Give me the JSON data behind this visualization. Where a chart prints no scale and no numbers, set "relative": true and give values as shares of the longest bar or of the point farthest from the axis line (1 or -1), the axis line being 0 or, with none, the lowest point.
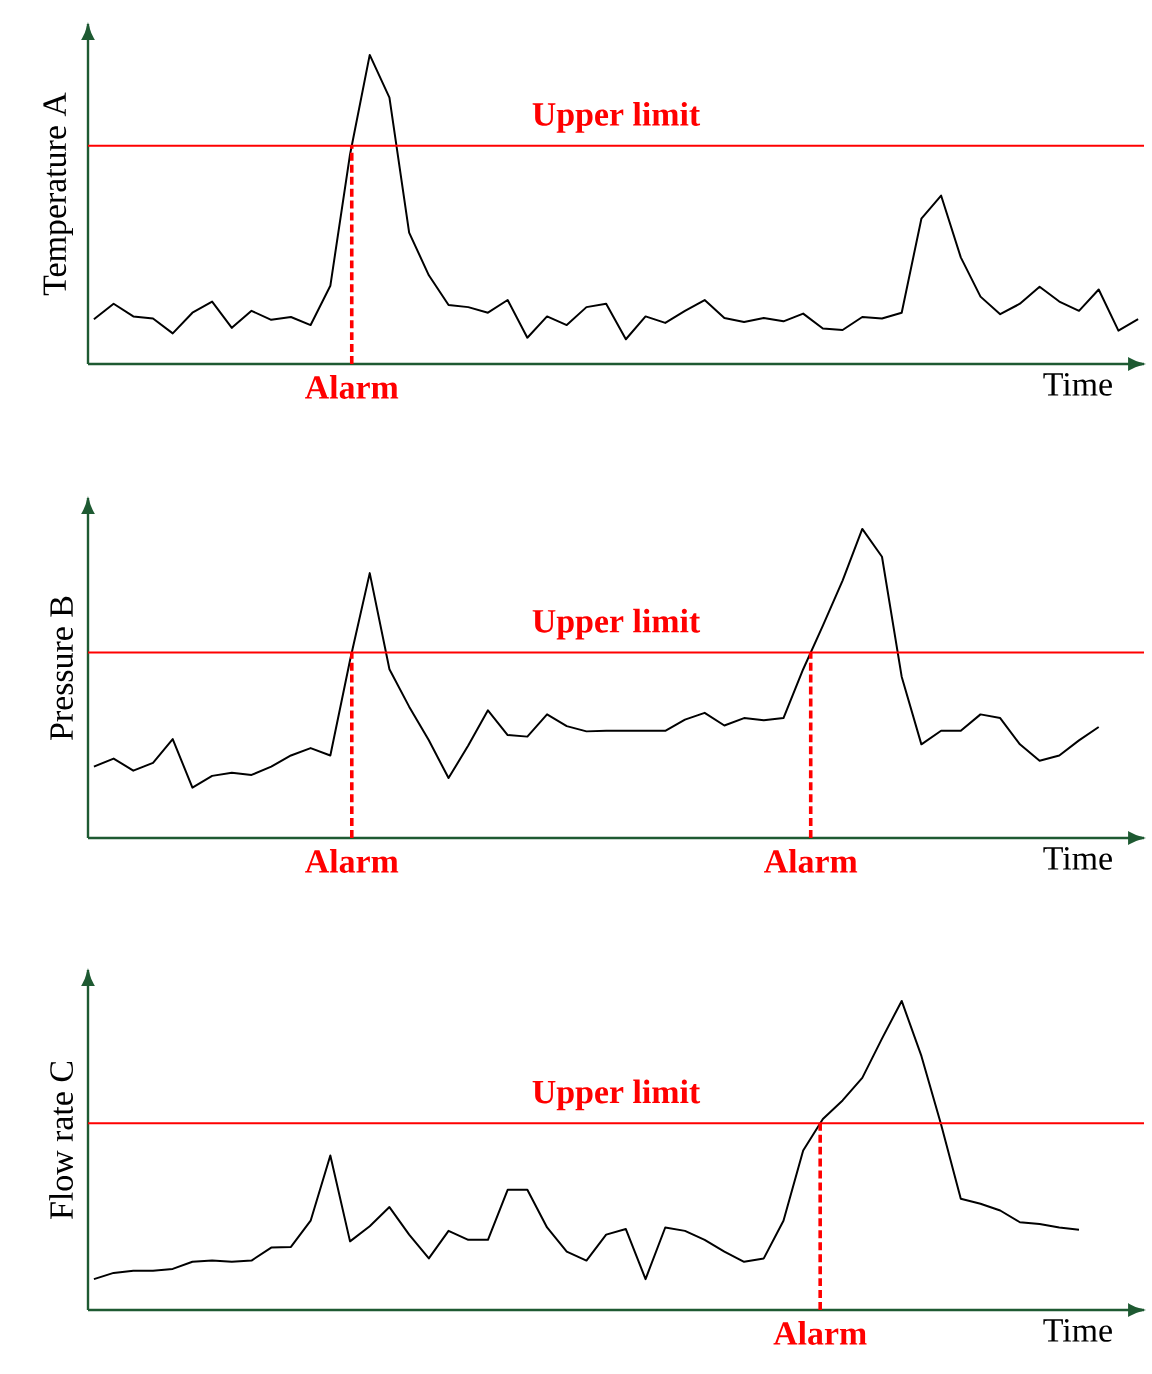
{
  "chart_data": [
    {
      "type": "line",
      "ylabel": "Temperature A",
      "xlabel": "Time",
      "relative": true,
      "categories": [
        null,
        null,
        null,
        null,
        null,
        null,
        null,
        null,
        null,
        null,
        null,
        null,
        null,
        null,
        null,
        null,
        null,
        null,
        null,
        null,
        null,
        null,
        null,
        null,
        null,
        null,
        null,
        null,
        null,
        null,
        null,
        null,
        null,
        null,
        null,
        null,
        null,
        null,
        null,
        null,
        null,
        null,
        null,
        null,
        null,
        null,
        null,
        null,
        null,
        null,
        null,
        null,
        null,
        null
      ],
      "series": [
        {
          "color": "#000000",
          "values": [
            0.145,
            0.195,
            0.154,
            0.147,
            0.099,
            0.166,
            0.202,
            0.117,
            0.172,
            0.143,
            0.152,
            0.126,
            0.253,
            0.678,
            1.0,
            0.862,
            0.425,
            0.287,
            0.191,
            0.184,
            0.166,
            0.207,
            0.085,
            0.154,
            0.126,
            0.184,
            0.195,
            0.08,
            0.154,
            0.133,
            0.172,
            0.207,
            0.149,
            0.136,
            0.149,
            0.138,
            0.163,
            0.115,
            0.11,
            0.152,
            0.147,
            0.166,
            0.47,
            0.545,
            0.345,
            0.218,
            0.161,
            0.195,
            0.25,
            0.202,
            0.172,
            0.241,
            0.108,
            0.145
          ]
        }
      ],
      "ref_lines": [
        {
          "axis": "y",
          "value": 0.706,
          "label": "Upper limit",
          "color": "#ff0000"
        }
      ],
      "annotations": [
        "Alarm"
      ]
    },
    {
      "type": "line",
      "ylabel": "Pressure B",
      "xlabel": "Time",
      "relative": true,
      "categories": [
        null,
        null,
        null,
        null,
        null,
        null,
        null,
        null,
        null,
        null,
        null,
        null,
        null,
        null,
        null,
        null,
        null,
        null,
        null,
        null,
        null,
        null,
        null,
        null,
        null,
        null,
        null,
        null,
        null,
        null,
        null,
        null,
        null,
        null,
        null,
        null,
        null,
        null,
        null,
        null,
        null,
        null,
        null,
        null,
        null,
        null,
        null,
        null,
        null,
        null,
        null,
        null
      ],
      "series": [
        {
          "color": "#000000",
          "values": [
            0.231,
            0.257,
            0.218,
            0.243,
            0.32,
            0.163,
            0.201,
            0.211,
            0.204,
            0.231,
            0.267,
            0.291,
            0.267,
            0.575,
            0.857,
            0.546,
            0.425,
            0.316,
            0.194,
            0.299,
            0.413,
            0.333,
            0.328,
            0.4,
            0.362,
            0.345,
            0.347,
            0.347,
            0.347,
            0.347,
            0.383,
            0.405,
            0.364,
            0.388,
            0.381,
            0.388,
            0.546,
            0.687,
            0.833,
            1.0,
            0.91,
            0.522,
            0.303,
            0.347,
            0.347,
            0.4,
            0.388,
            0.303,
            0.25,
            0.267,
            0.316,
            0.359
          ]
        }
      ],
      "ref_lines": [
        {
          "axis": "y",
          "value": 0.6,
          "label": "Upper limit",
          "color": "#ff0000"
        }
      ],
      "annotations": [
        "Alarm",
        "Alarm"
      ]
    },
    {
      "type": "line",
      "ylabel": "Flow rate C",
      "xlabel": "Time",
      "relative": true,
      "categories": [
        null,
        null,
        null,
        null,
        null,
        null,
        null,
        null,
        null,
        null,
        null,
        null,
        null,
        null,
        null,
        null,
        null,
        null,
        null,
        null,
        null,
        null,
        null,
        null,
        null,
        null,
        null,
        null,
        null,
        null,
        null,
        null,
        null,
        null,
        null,
        null,
        null,
        null,
        null,
        null,
        null,
        null,
        null,
        null,
        null,
        null,
        null,
        null,
        null,
        null,
        null
      ],
      "series": [
        {
          "color": "#000000",
          "values": [
            0.1,
            0.12,
            0.127,
            0.127,
            0.133,
            0.156,
            0.16,
            0.156,
            0.16,
            0.202,
            0.204,
            0.289,
            0.5,
            0.222,
            0.271,
            0.333,
            0.244,
            0.167,
            0.256,
            0.227,
            0.227,
            0.389,
            0.389,
            0.267,
            0.189,
            0.16,
            0.244,
            0.262,
            0.1,
            0.267,
            0.256,
            0.227,
            0.189,
            0.156,
            0.167,
            0.289,
            0.516,
            0.618,
            0.678,
            0.751,
            0.878,
            1.0,
            0.822,
            0.6,
            0.36,
            0.344,
            0.322,
            0.284,
            0.278,
            0.267,
            0.26
          ]
        }
      ],
      "ref_lines": [
        {
          "axis": "y",
          "value": 0.604,
          "label": "Upper limit",
          "color": "#ff0000"
        }
      ],
      "annotations": [
        "Alarm"
      ]
    }
  ]
}
